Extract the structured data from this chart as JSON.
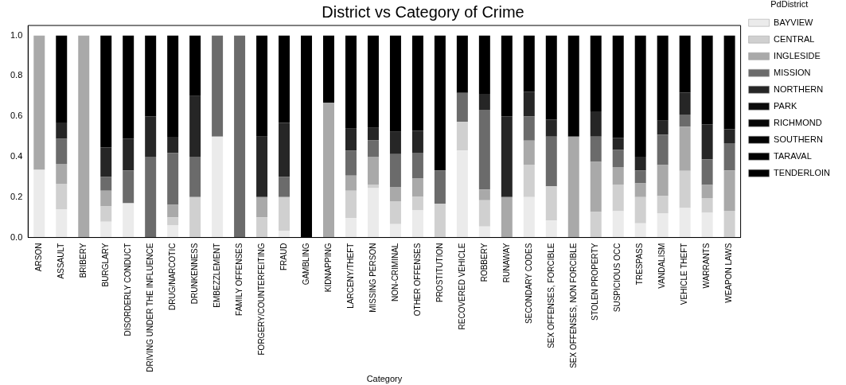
{
  "chart_data": {
    "type": "bar",
    "title": "District vs Category of Crime",
    "xlabel": "Category",
    "legend_title": "PdDistrict",
    "legend": "right",
    "stacked": true,
    "grid": false,
    "categories": [
      "ARSON",
      "ASSAULT",
      "BRIBERY",
      "BURGLARY",
      "DISORDERLY CONDUCT",
      "DRIVING UNDER THE INFLUENCE",
      "DRUG/NARCOTIC",
      "DRUNKENNESS",
      "EMBEZZLEMENT",
      "FAMILY OFFENSES",
      "FORGERY/COUNTERFEITING",
      "FRAUD",
      "GAMBLING",
      "KIDNAPPING",
      "LARCENY/THEFT",
      "MISSING PERSON",
      "NON-CRIMINAL",
      "OTHER OFFENSES",
      "PROSTITUTION",
      "RECOVERED VEHICLE",
      "ROBBERY",
      "RUNAWAY",
      "SECONDARY CODES",
      "SEX OFFENSES, FORCIBLE",
      "SEX OFFENSES, NON FORCIBLE",
      "STOLEN PROPERTY",
      "SUSPICIOUS OCC",
      "TRESPASS",
      "VANDALISM",
      "VEHICLE THEFT",
      "WARRANTS",
      "WEAPON LAWS"
    ],
    "ylim": [
      0,
      1.05
    ],
    "yticks": [
      {
        "value": 0,
        "label": "0.0"
      },
      {
        "value": 0.2,
        "label": "0.2"
      },
      {
        "value": 0.4,
        "label": "0.4"
      },
      {
        "value": 0.6,
        "label": "0.6"
      },
      {
        "value": 0.8,
        "label": "0.8"
      },
      {
        "value": 1,
        "label": "1.0"
      }
    ],
    "series": [
      {
        "name": "BAYVIEW",
        "color": "#ebebeb",
        "values": [
          0.335,
          0.14,
          0,
          0.078,
          0.17,
          0,
          0.061,
          0,
          0.5,
          0,
          0,
          0.034,
          0,
          0,
          0.096,
          0.244,
          0.066,
          0.134,
          0,
          0.431,
          0.054,
          0,
          0.2,
          0.084,
          0,
          0,
          0.13,
          0.07,
          0.12,
          0.146,
          0.122,
          0
        ]
      },
      {
        "name": "CENTRAL",
        "color": "#d0d0d0",
        "values": [
          0,
          0.126,
          0,
          0.076,
          0,
          0,
          0.039,
          0.2,
          0,
          0,
          0.1,
          0.166,
          0,
          0,
          0.136,
          0.018,
          0.112,
          0.067,
          0.168,
          0.141,
          0.13,
          0,
          0.161,
          0.169,
          0,
          0.126,
          0.132,
          0.13,
          0.085,
          0.184,
          0.073,
          0.132
        ]
      },
      {
        "name": "INGLESIDE",
        "color": "#a9a9a9",
        "values": [
          0.665,
          0.099,
          1,
          0.078,
          0,
          0,
          0.062,
          0,
          0,
          0,
          0.1,
          0,
          0,
          0.668,
          0.075,
          0.138,
          0.072,
          0.091,
          0,
          0,
          0.054,
          0.2,
          0.119,
          0,
          0.5,
          0.248,
          0.087,
          0.068,
          0.154,
          0.219,
          0.065,
          0.2
        ]
      },
      {
        "name": "MISSION",
        "color": "#6b6b6b",
        "values": [
          0,
          0.124,
          0,
          0.068,
          0.162,
          0.4,
          0.257,
          0.2,
          0.5,
          1,
          0,
          0.1,
          0,
          0,
          0.123,
          0.081,
          0.163,
          0.128,
          0.164,
          0.144,
          0.394,
          0,
          0.12,
          0.247,
          0,
          0.126,
          0.085,
          0.064,
          0.15,
          0.06,
          0.127,
          0.135
        ]
      },
      {
        "name": "NORTHERN",
        "color": "#262626",
        "values": [
          0,
          0.08,
          0,
          0.145,
          0.157,
          0.2,
          0.08,
          0.3,
          0,
          0,
          0.3,
          0.267,
          0,
          0,
          0.109,
          0.062,
          0.11,
          0.109,
          0,
          0,
          0.079,
          0.4,
          0.122,
          0.084,
          0,
          0.125,
          0.059,
          0.068,
          0.069,
          0.109,
          0.174,
          0.069
        ]
      },
      {
        "name": "PARK",
        "color": "#0a0a0a",
        "values": [
          0,
          0,
          0,
          0,
          0,
          0,
          0,
          0,
          0,
          0,
          0,
          0,
          0,
          0,
          0,
          0,
          0,
          0,
          0,
          0,
          0,
          0,
          0,
          0,
          0,
          0,
          0,
          0,
          0,
          0,
          0,
          0
        ]
      },
      {
        "name": "RICHMOND",
        "color": "#060606",
        "values": [
          0,
          0,
          0,
          0,
          0,
          0,
          0,
          0,
          0,
          0,
          0,
          0,
          0,
          0,
          0,
          0,
          0,
          0,
          0,
          0,
          0,
          0,
          0,
          0,
          0,
          0,
          0,
          0,
          0,
          0,
          0,
          0
        ]
      },
      {
        "name": "SOUTHERN",
        "color": "#040404",
        "values": [
          0,
          0,
          0,
          0,
          0,
          0,
          0,
          0,
          0,
          0,
          0,
          0,
          0,
          0,
          0,
          0,
          0,
          0,
          0,
          0,
          0,
          0,
          0,
          0,
          0,
          0,
          0,
          0,
          0,
          0,
          0,
          0
        ]
      },
      {
        "name": "TARAVAL",
        "color": "#020202",
        "values": [
          0,
          0,
          0,
          0,
          0,
          0,
          0,
          0,
          0,
          0,
          0,
          0,
          0,
          0,
          0,
          0,
          0,
          0,
          0,
          0,
          0,
          0,
          0,
          0,
          0,
          0,
          0,
          0,
          0,
          0,
          0,
          0
        ]
      },
      {
        "name": "TENDERLOIN",
        "color": "#000000",
        "values": [
          0,
          0.431,
          0,
          0.555,
          0.511,
          0.4,
          0.501,
          0.3,
          0,
          0,
          0.5,
          0.433,
          1,
          0.332,
          0.461,
          0.457,
          0.477,
          0.471,
          0.668,
          0.284,
          0.289,
          0.4,
          0.278,
          0.416,
          0.5,
          0.375,
          0.507,
          0.6,
          0.422,
          0.282,
          0.439,
          0.464
        ]
      }
    ]
  }
}
